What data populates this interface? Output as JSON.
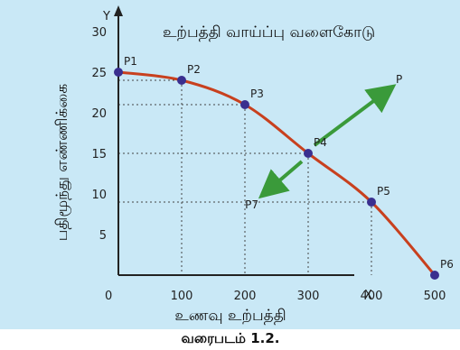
{
  "title": "உற்பத்தி வாய்ப்பு வளைகோடு",
  "caption": "வரைபடம் 1.2.",
  "colors": {
    "panel": "#c9e8f6",
    "curve": "#c8401e",
    "point": "#3a2f8f",
    "arrow": "#3a9a3a",
    "guide": "#444444"
  },
  "chart_data": {
    "type": "line",
    "title": "உற்பத்தி வாய்ப்பு வளைகோடு",
    "xlabel": "உணவு உற்பத்தி",
    "ylabel": "பதிமூந்து எண்ணிக்கை",
    "x_axis_letter": "X",
    "y_axis_letter": "Y",
    "origin_label": "0",
    "xlim": [
      0,
      500
    ],
    "ylim": [
      0,
      30
    ],
    "xticks": [
      "100",
      "200",
      "300",
      "400",
      "500"
    ],
    "yticks": [
      "5",
      "10",
      "15",
      "20",
      "25",
      "30"
    ],
    "grid": false,
    "series": [
      {
        "x": [
          0,
          100,
          200,
          300,
          400,
          500
        ],
        "y": [
          25,
          24,
          21,
          15,
          9,
          0
        ],
        "labels": [
          "P1",
          "P2",
          "P3",
          "P4",
          "P5",
          "P6"
        ]
      }
    ],
    "annotations": [
      {
        "label": "P",
        "x": 430,
        "y": 23,
        "type": "outside-point",
        "arrow_from": [
          310,
          16
        ]
      },
      {
        "label": "P7",
        "x": 230,
        "y": 10,
        "type": "inside-point",
        "arrow_from": [
          290,
          14
        ]
      }
    ]
  }
}
